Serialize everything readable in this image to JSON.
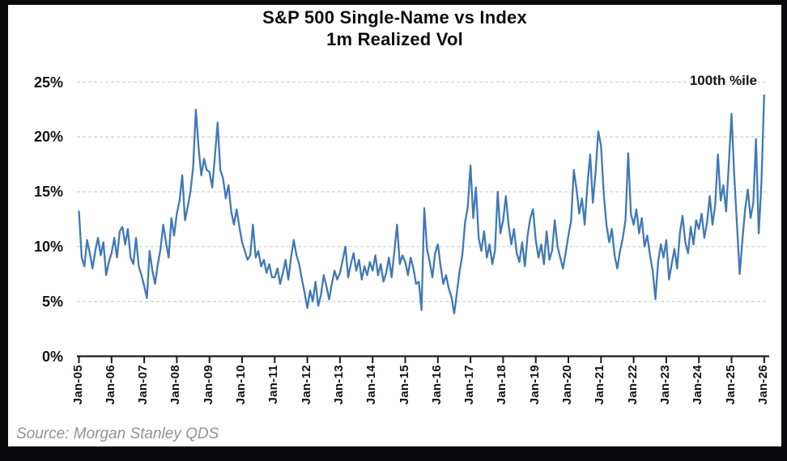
{
  "title": {
    "line1": "S&P 500 Single-Name vs Index",
    "line2": "1m Realized Vol"
  },
  "annotation": {
    "label": "100th %ile"
  },
  "source": {
    "text": "Source: Morgan Stanley QDS"
  },
  "chart_data": {
    "type": "line",
    "title": "S&P 500 Single-Name vs Index 1m Realized Vol",
    "series": [
      {
        "name": "1m realized vol spread (single-name vs index)",
        "points_per_year": 12,
        "values": [
          13.2,
          9.0,
          8.2,
          10.6,
          9.4,
          8.0,
          9.6,
          10.8,
          9.2,
          10.4,
          7.4,
          8.6,
          9.4,
          10.8,
          9.0,
          11.4,
          11.8,
          10.2,
          11.6,
          9.0,
          8.4,
          10.8,
          8.2,
          7.4,
          6.4,
          5.3,
          9.6,
          7.8,
          6.6,
          8.4,
          9.8,
          12.0,
          10.4,
          9.0,
          12.6,
          11.0,
          13.0,
          14.2,
          16.5,
          12.4,
          13.6,
          15.0,
          17.2,
          22.5,
          19.0,
          16.5,
          18.0,
          17.0,
          16.8,
          15.4,
          18.2,
          21.3,
          17.0,
          16.2,
          14.4,
          15.6,
          13.2,
          12.0,
          13.4,
          11.8,
          10.4,
          9.6,
          8.8,
          9.2,
          12.0,
          9.0,
          9.6,
          8.2,
          8.8,
          7.6,
          8.4,
          7.2,
          7.2,
          8.0,
          6.6,
          7.6,
          8.8,
          7.0,
          9.0,
          10.6,
          9.2,
          8.4,
          7.0,
          5.8,
          4.4,
          6.0,
          5.0,
          6.8,
          4.6,
          5.6,
          7.4,
          6.4,
          5.2,
          6.6,
          7.8,
          7.0,
          7.6,
          8.8,
          10.0,
          7.2,
          8.4,
          9.4,
          7.8,
          8.8,
          7.0,
          8.2,
          7.4,
          8.6,
          7.8,
          9.2,
          7.4,
          8.4,
          6.8,
          7.6,
          9.0,
          7.2,
          9.6,
          12.0,
          8.4,
          9.2,
          8.6,
          7.4,
          9.0,
          8.0,
          6.6,
          6.8,
          4.2,
          13.5,
          9.8,
          8.6,
          7.2,
          9.4,
          10.2,
          8.2,
          6.6,
          7.4,
          6.2,
          5.4,
          3.9,
          5.8,
          7.8,
          9.2,
          12.2,
          13.6,
          17.4,
          12.6,
          15.4,
          10.8,
          9.6,
          11.4,
          9.0,
          10.2,
          8.4,
          9.6,
          15.0,
          11.2,
          12.4,
          14.6,
          12.0,
          10.2,
          11.6,
          9.4,
          8.6,
          10.4,
          8.2,
          11.0,
          12.6,
          13.4,
          10.6,
          9.0,
          10.2,
          8.4,
          11.4,
          8.8,
          9.6,
          12.4,
          10.0,
          9.0,
          8.0,
          9.4,
          11.0,
          12.4,
          17.0,
          15.2,
          13.0,
          14.4,
          12.0,
          15.6,
          18.4,
          14.0,
          16.8,
          20.5,
          19.2,
          14.8,
          12.0,
          10.4,
          11.6,
          9.2,
          8.0,
          9.6,
          10.8,
          12.4,
          18.5,
          13.0,
          12.0,
          13.4,
          11.2,
          12.6,
          10.0,
          11.0,
          9.2,
          7.8,
          5.2,
          8.6,
          10.2,
          9.0,
          10.6,
          7.0,
          8.4,
          9.8,
          8.0,
          11.2,
          12.8,
          10.4,
          9.4,
          11.8,
          10.2,
          12.4,
          11.6,
          13.0,
          10.8,
          12.2,
          14.6,
          12.0,
          13.8,
          18.4,
          14.2,
          15.6,
          13.2,
          17.5,
          22.1,
          16.4,
          12.0,
          7.5,
          10.6,
          13.4,
          15.2,
          12.6,
          14.0,
          19.8,
          11.2,
          15.8,
          23.8
        ]
      }
    ],
    "x_tick_labels": [
      "Jan-05",
      "Jan-06",
      "Jan-07",
      "Jan-08",
      "Jan-09",
      "Jan-10",
      "Jan-11",
      "Jan-12",
      "Jan-13",
      "Jan-14",
      "Jan-15",
      "Jan-16",
      "Jan-17",
      "Jan-18",
      "Jan-19",
      "Jan-20",
      "Jan-21",
      "Jan-22",
      "Jan-23",
      "Jan-24",
      "Jan-25",
      "Jan-26"
    ],
    "y_tick_labels": [
      "0%",
      "5%",
      "10%",
      "15%",
      "20%",
      "25%"
    ],
    "ylim": [
      0,
      25
    ],
    "y_tick_step": 5,
    "grid": "horizontal-dashed",
    "legend": "none",
    "annotation": "100th %ile",
    "line_color": "#4079B5",
    "grid_color": "#d2d2d2",
    "axis_color": "#1c1c1c"
  }
}
